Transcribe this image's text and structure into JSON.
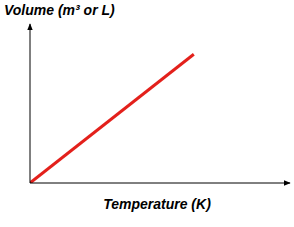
{
  "chart_data": {
    "type": "line",
    "x_label": "Temperature (K)",
    "y_label": "Volume (m³ or L)",
    "x": [
      0,
      63
    ],
    "values": [
      0,
      81
    ],
    "color": "#e3201b",
    "xlim": [
      0,
      100
    ],
    "ylim": [
      0,
      100
    ],
    "tick_labels": false,
    "grid": false
  }
}
